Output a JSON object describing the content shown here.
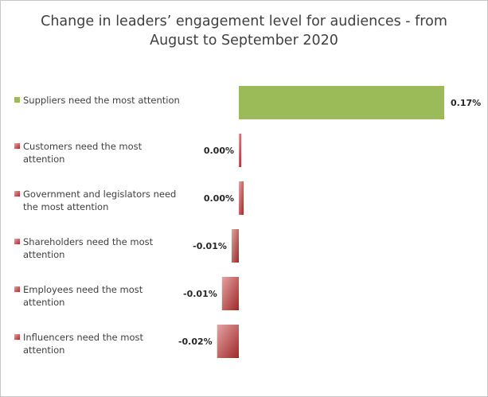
{
  "chart_data": {
    "type": "bar",
    "orientation": "horizontal",
    "title_lines": [
      "Change in leaders’ engagement level for audiences - from",
      "August to September 2020"
    ],
    "categories": [
      [
        "Suppliers need the most attention"
      ],
      [
        "Customers need the most",
        "attention"
      ],
      [
        "Government and legislators need",
        "the most attention"
      ],
      [
        "Shareholders need the most",
        "attention"
      ],
      [
        "Employees need the most",
        "attention"
      ],
      [
        "Influencers need the most",
        "attention"
      ]
    ],
    "values": [
      0.17,
      0.002,
      0.004,
      -0.006,
      -0.014,
      -0.018
    ],
    "value_labels": [
      "0.17%",
      "0.00%",
      "0.00%",
      "-0.01%",
      "-0.01%",
      "-0.02%"
    ],
    "unit": "%",
    "legend_position": "left",
    "grid": false,
    "colors": {
      "positive": "#9bbb59",
      "negative_dark": "#a32d2d",
      "negative_light": "#e09a9a"
    }
  }
}
